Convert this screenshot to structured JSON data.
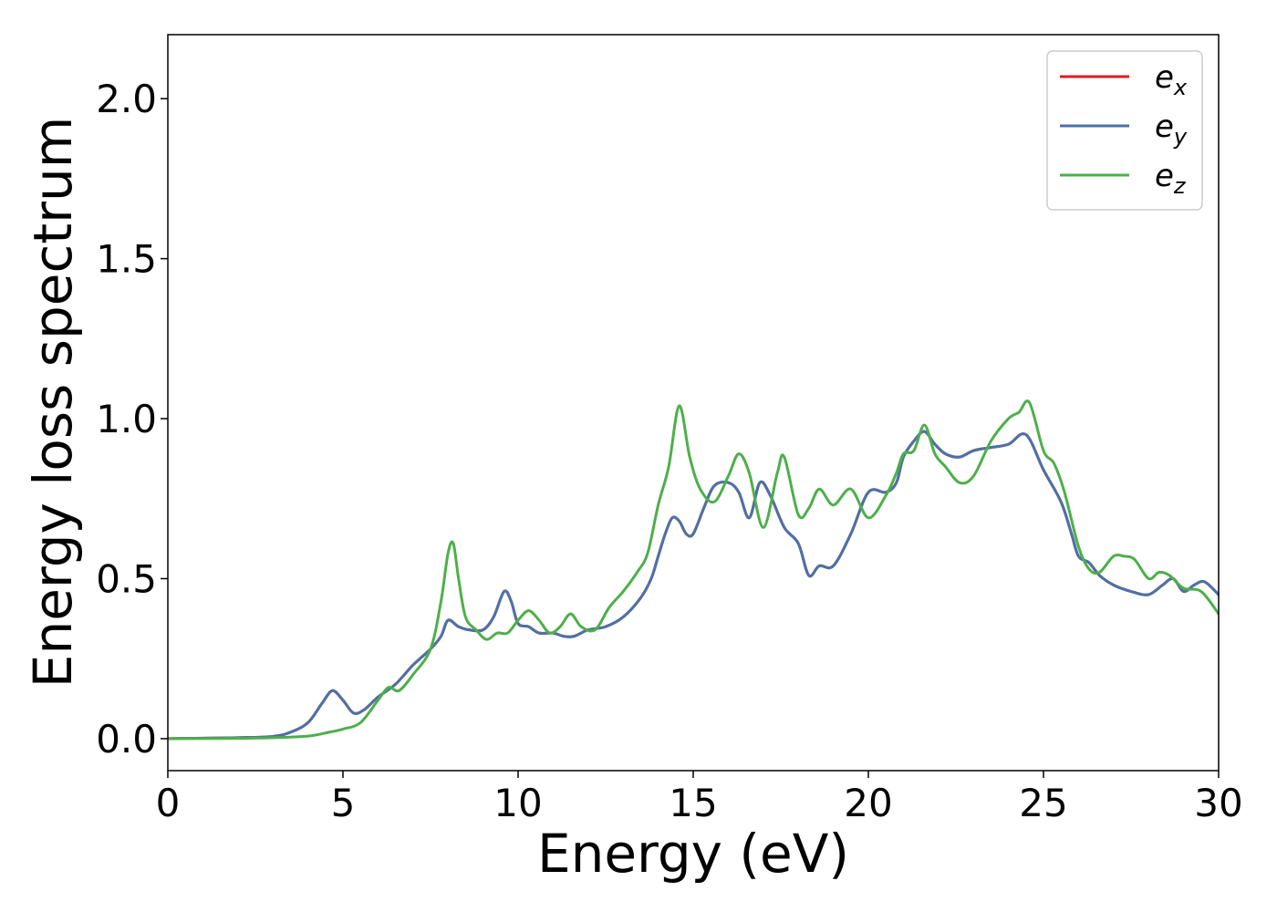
{
  "chart_data": {
    "type": "line",
    "title": "",
    "xlabel": "Energy (eV)",
    "ylabel": "Energy loss spectrum",
    "xlim": [
      0,
      30
    ],
    "ylim": [
      -0.1,
      2.2
    ],
    "xticks": [
      0,
      5,
      10,
      15,
      20,
      25,
      30
    ],
    "xtick_labels": [
      "0",
      "5",
      "10",
      "15",
      "20",
      "25",
      "30"
    ],
    "yticks": [
      0.0,
      0.5,
      1.0,
      1.5,
      2.0
    ],
    "ytick_labels": [
      "0.0",
      "0.5",
      "1.0",
      "1.5",
      "2.0"
    ],
    "grid": false,
    "legend_position": "top-right",
    "series": [
      {
        "name": "e",
        "subscript": "x",
        "color": "#e41a1c",
        "x": [
          0,
          2,
          3,
          3.5,
          4,
          4.4,
          4.7,
          5,
          5.3,
          5.6,
          6,
          6.5,
          7,
          7.5,
          7.8,
          8,
          8.3,
          8.6,
          9,
          9.3,
          9.6,
          9.8,
          10,
          10.3,
          10.6,
          11,
          11.3,
          11.6,
          12,
          12.5,
          13,
          13.5,
          13.8,
          14,
          14.2,
          14.4,
          14.6,
          14.8,
          15,
          15.3,
          15.6,
          16,
          16.3,
          16.6,
          16.9,
          17.2,
          17.6,
          18,
          18.3,
          18.6,
          19,
          19.5,
          20,
          20.5,
          20.8,
          21,
          21.3,
          21.6,
          21.9,
          22.2,
          22.6,
          23,
          23.5,
          24,
          24.5,
          25,
          25.5,
          25.8,
          26,
          26.3,
          26.6,
          27,
          27.5,
          28,
          28.4,
          28.7,
          29,
          29.3,
          29.6,
          30
        ],
        "values": [
          0,
          0.003,
          0.007,
          0.02,
          0.05,
          0.11,
          0.15,
          0.12,
          0.08,
          0.09,
          0.13,
          0.17,
          0.23,
          0.28,
          0.32,
          0.37,
          0.35,
          0.34,
          0.34,
          0.38,
          0.46,
          0.43,
          0.36,
          0.35,
          0.33,
          0.33,
          0.32,
          0.32,
          0.34,
          0.35,
          0.38,
          0.44,
          0.5,
          0.57,
          0.64,
          0.69,
          0.68,
          0.64,
          0.64,
          0.72,
          0.79,
          0.8,
          0.77,
          0.69,
          0.8,
          0.76,
          0.66,
          0.61,
          0.51,
          0.54,
          0.54,
          0.64,
          0.77,
          0.77,
          0.8,
          0.88,
          0.93,
          0.96,
          0.92,
          0.89,
          0.88,
          0.9,
          0.91,
          0.92,
          0.95,
          0.84,
          0.74,
          0.64,
          0.57,
          0.55,
          0.51,
          0.48,
          0.46,
          0.45,
          0.48,
          0.5,
          0.46,
          0.48,
          0.49,
          0.45
        ]
      },
      {
        "name": "e",
        "subscript": "y",
        "color": "#4a72a8",
        "x": [
          0,
          2,
          3,
          3.5,
          4,
          4.4,
          4.7,
          5,
          5.3,
          5.6,
          6,
          6.5,
          7,
          7.5,
          7.8,
          8,
          8.3,
          8.6,
          9,
          9.3,
          9.6,
          9.8,
          10,
          10.3,
          10.6,
          11,
          11.3,
          11.6,
          12,
          12.5,
          13,
          13.5,
          13.8,
          14,
          14.2,
          14.4,
          14.6,
          14.8,
          15,
          15.3,
          15.6,
          16,
          16.3,
          16.6,
          16.9,
          17.2,
          17.6,
          18,
          18.3,
          18.6,
          19,
          19.5,
          20,
          20.5,
          20.8,
          21,
          21.3,
          21.6,
          21.9,
          22.2,
          22.6,
          23,
          23.5,
          24,
          24.5,
          25,
          25.5,
          25.8,
          26,
          26.3,
          26.6,
          27,
          27.5,
          28,
          28.4,
          28.7,
          29,
          29.3,
          29.6,
          30
        ],
        "values": [
          0,
          0.003,
          0.007,
          0.02,
          0.05,
          0.11,
          0.15,
          0.12,
          0.08,
          0.09,
          0.13,
          0.17,
          0.23,
          0.28,
          0.32,
          0.37,
          0.35,
          0.34,
          0.34,
          0.38,
          0.46,
          0.43,
          0.36,
          0.35,
          0.33,
          0.33,
          0.32,
          0.32,
          0.34,
          0.35,
          0.38,
          0.44,
          0.5,
          0.57,
          0.64,
          0.69,
          0.68,
          0.64,
          0.64,
          0.72,
          0.79,
          0.8,
          0.77,
          0.69,
          0.8,
          0.76,
          0.66,
          0.61,
          0.51,
          0.54,
          0.54,
          0.64,
          0.77,
          0.77,
          0.8,
          0.88,
          0.93,
          0.96,
          0.92,
          0.89,
          0.88,
          0.9,
          0.91,
          0.92,
          0.95,
          0.84,
          0.74,
          0.64,
          0.57,
          0.55,
          0.51,
          0.48,
          0.46,
          0.45,
          0.48,
          0.5,
          0.46,
          0.48,
          0.49,
          0.45
        ]
      },
      {
        "name": "e",
        "subscript": "z",
        "color": "#4daf4a",
        "x": [
          0,
          2,
          3,
          4,
          4.6,
          5,
          5.5,
          6,
          6.3,
          6.6,
          7,
          7.5,
          7.8,
          8,
          8.15,
          8.3,
          8.5,
          8.8,
          9.1,
          9.4,
          9.7,
          10,
          10.3,
          10.6,
          10.9,
          11.2,
          11.5,
          11.8,
          12.2,
          12.6,
          13,
          13.4,
          13.7,
          14,
          14.3,
          14.6,
          14.9,
          15.2,
          15.6,
          16,
          16.3,
          16.6,
          17,
          17.4,
          17.6,
          18,
          18.3,
          18.6,
          19,
          19.5,
          20,
          20.5,
          20.8,
          21,
          21.3,
          21.6,
          21.9,
          22.2,
          22.6,
          23,
          23.5,
          24,
          24.3,
          24.6,
          25,
          25.3,
          25.6,
          26,
          26.3,
          26.6,
          27,
          27.3,
          27.6,
          28,
          28.3,
          28.6,
          29,
          29.5,
          30
        ],
        "values": [
          0,
          0.001,
          0.003,
          0.008,
          0.02,
          0.03,
          0.05,
          0.12,
          0.16,
          0.15,
          0.2,
          0.28,
          0.43,
          0.58,
          0.61,
          0.5,
          0.38,
          0.34,
          0.31,
          0.33,
          0.33,
          0.37,
          0.4,
          0.37,
          0.33,
          0.35,
          0.39,
          0.35,
          0.34,
          0.41,
          0.46,
          0.52,
          0.58,
          0.73,
          0.85,
          1.04,
          0.88,
          0.78,
          0.74,
          0.82,
          0.89,
          0.83,
          0.66,
          0.83,
          0.88,
          0.7,
          0.72,
          0.78,
          0.73,
          0.78,
          0.69,
          0.76,
          0.83,
          0.89,
          0.9,
          0.98,
          0.89,
          0.85,
          0.8,
          0.82,
          0.93,
          1.0,
          1.02,
          1.05,
          0.9,
          0.86,
          0.77,
          0.6,
          0.53,
          0.52,
          0.57,
          0.57,
          0.56,
          0.5,
          0.52,
          0.51,
          0.47,
          0.46,
          0.39
        ]
      }
    ]
  }
}
